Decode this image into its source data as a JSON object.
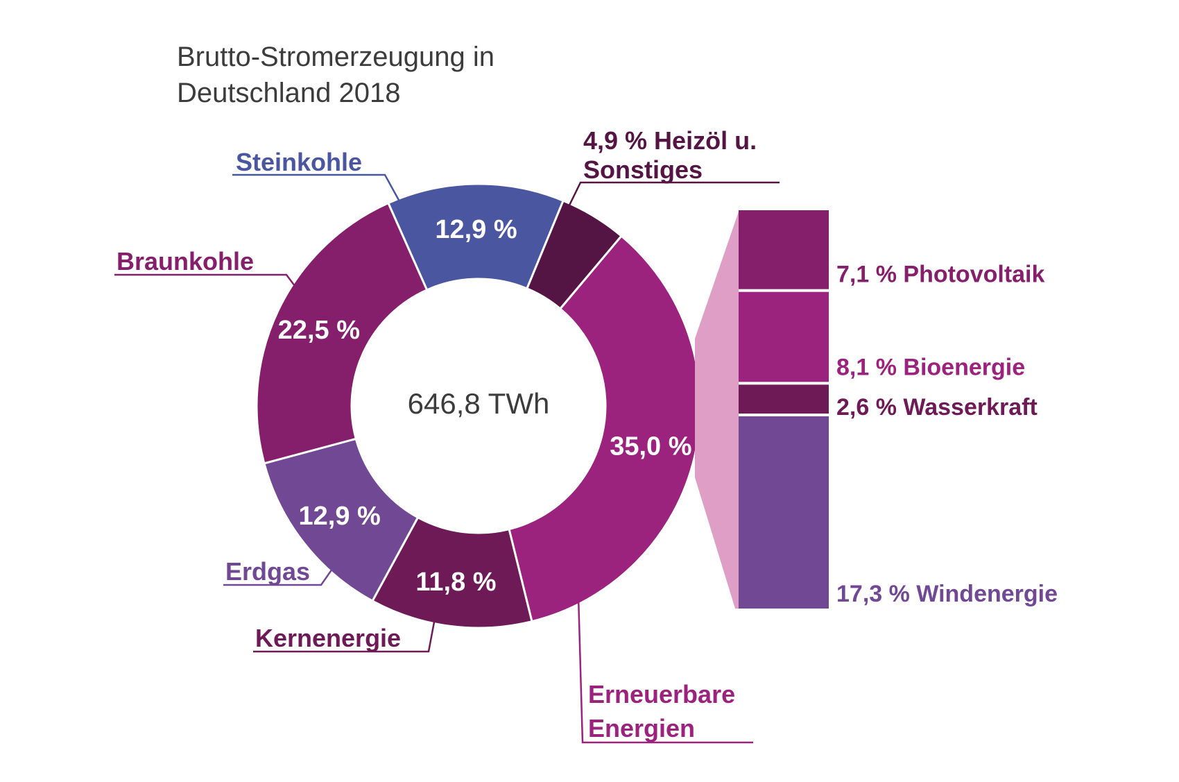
{
  "title_line1": "Brutto-Stromerzeugung in",
  "title_line2": "Deutschland 2018",
  "chart_data": {
    "type": "pie",
    "variant": "donut",
    "total_label": "646,8 TWh",
    "slices": [
      {
        "name": "Steinkohle",
        "value": 12.9,
        "pct_label": "12,9 %",
        "color": "#4b56a0"
      },
      {
        "name": "Heizöl u. Sonstiges",
        "value": 4.9,
        "pct_label": "4,9 %",
        "color": "#541545"
      },
      {
        "name": "Erneuerbare Energien",
        "value": 35.0,
        "pct_label": "35,0 %",
        "color": "#9b227d"
      },
      {
        "name": "Kernenergie",
        "value": 11.8,
        "pct_label": "11,8 %",
        "color": "#6d1a57"
      },
      {
        "name": "Erdgas",
        "value": 12.9,
        "pct_label": "12,9 %",
        "color": "#714893"
      },
      {
        "name": "Braunkohle",
        "value": 22.5,
        "pct_label": "22,5 %",
        "color": "#861f6b"
      }
    ],
    "renewables_breakdown": [
      {
        "name": "Photovoltaik",
        "value": 7.1,
        "label": "7,1 % Photovoltaik",
        "color": "#861f6b"
      },
      {
        "name": "Bioenergie",
        "value": 8.1,
        "label": "8,1 % Bioenergie",
        "color": "#9b227d"
      },
      {
        "name": "Wasserkraft",
        "value": 2.6,
        "label": "2,6 % Wasserkraft",
        "color": "#6d1a57"
      },
      {
        "name": "Windenergie",
        "value": 17.3,
        "label": "17,3 % Windenergie",
        "color": "#714893"
      }
    ]
  },
  "labels": {
    "steinkohle": "Steinkohle",
    "heizoel_1": "4,9 % Heizöl u.",
    "heizoel_2": "Sonstiges",
    "braunkohle": "Braunkohle",
    "erdgas": "Erdgas",
    "kernenergie": "Kernenergie",
    "erneuerbare_1": "Erneuerbare",
    "erneuerbare_2": "Energien"
  },
  "colors": {
    "steinkohle_label": "#4b56a0",
    "heizoel_label": "#541545",
    "braunkohle_label": "#861f6b",
    "erdgas_label": "#714893",
    "kernenergie_label": "#6d1a57",
    "erneuerbare_label": "#9b227d",
    "connector_fill": "#de9ec5"
  }
}
